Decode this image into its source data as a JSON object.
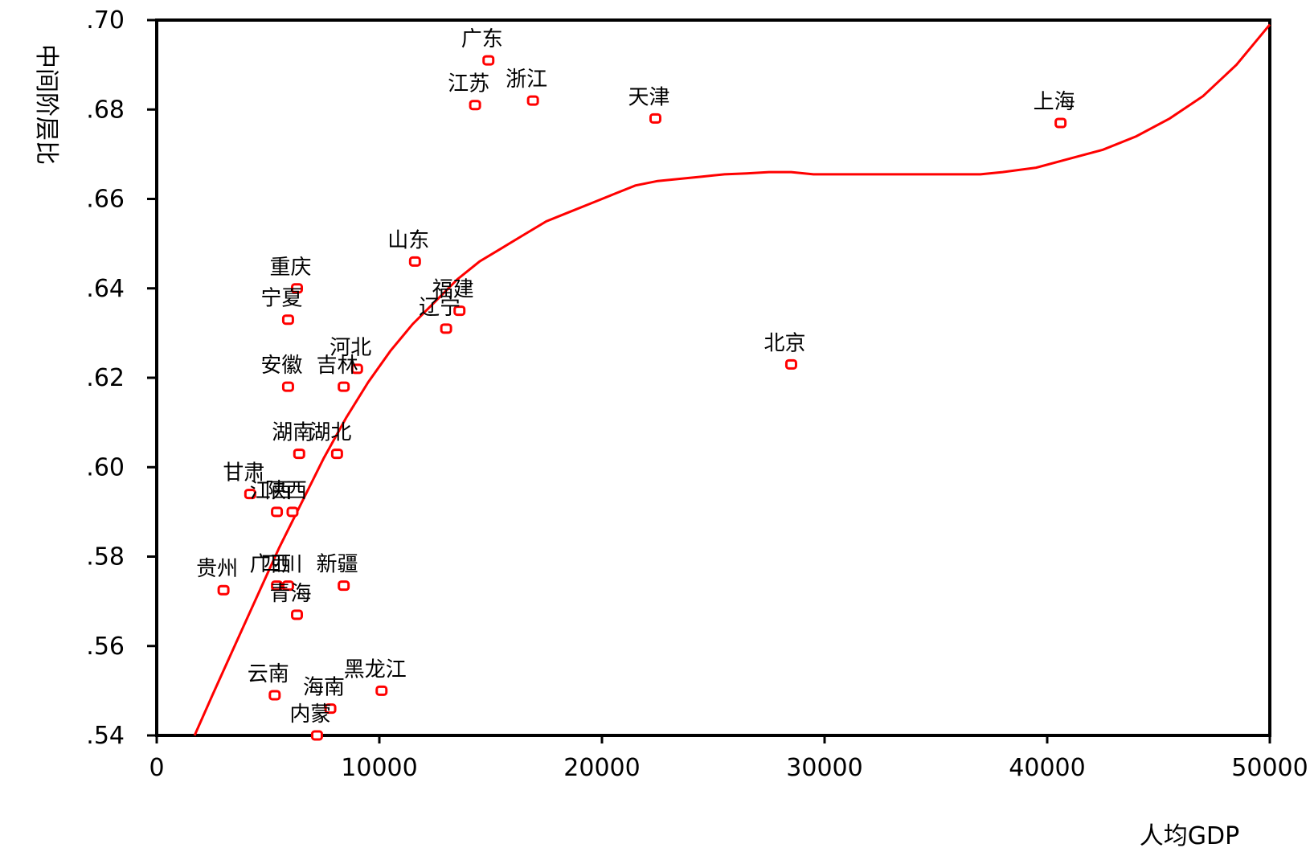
{
  "chart_data": {
    "type": "scatter",
    "xlabel": "人均GDP",
    "ylabel": "中间阶层比",
    "xlim": [
      0,
      50000
    ],
    "ylim": [
      0.54,
      0.7
    ],
    "x_ticks": [
      0,
      10000,
      20000,
      30000,
      40000,
      50000
    ],
    "x_tick_labels": [
      "0",
      "10000",
      "20000",
      "30000",
      "40000",
      "50000"
    ],
    "y_ticks": [
      0.54,
      0.56,
      0.58,
      0.6,
      0.62,
      0.64,
      0.66,
      0.68,
      0.7
    ],
    "y_tick_labels": [
      ".54",
      ".56",
      ".58",
      ".60",
      ".62",
      ".64",
      ".66",
      ".68",
      ".70"
    ],
    "grid": false,
    "marker_color": "#ff0000",
    "curve_color": "#ff0000",
    "points": [
      {
        "label": "广东",
        "x": 14900,
        "y": 0.691
      },
      {
        "label": "江苏",
        "x": 14300,
        "y": 0.681
      },
      {
        "label": "浙江",
        "x": 16900,
        "y": 0.682
      },
      {
        "label": "天津",
        "x": 22400,
        "y": 0.678
      },
      {
        "label": "上海",
        "x": 40600,
        "y": 0.677
      },
      {
        "label": "山东",
        "x": 11600,
        "y": 0.646
      },
      {
        "label": "重庆",
        "x": 6300,
        "y": 0.64
      },
      {
        "label": "宁夏",
        "x": 5900,
        "y": 0.633
      },
      {
        "label": "福建",
        "x": 13600,
        "y": 0.635
      },
      {
        "label": "辽宁",
        "x": 13000,
        "y": 0.631
      },
      {
        "label": "北京",
        "x": 28500,
        "y": 0.623
      },
      {
        "label": "河北",
        "x": 9000,
        "y": 0.622
      },
      {
        "label": "安徽",
        "x": 5900,
        "y": 0.618
      },
      {
        "label": "吉林",
        "x": 8400,
        "y": 0.618
      },
      {
        "label": "湖南",
        "x": 6400,
        "y": 0.603
      },
      {
        "label": "湖北",
        "x": 8100,
        "y": 0.603
      },
      {
        "label": "甘肃",
        "x": 4200,
        "y": 0.594
      },
      {
        "label": "陕西",
        "x": 6100,
        "y": 0.59
      },
      {
        "label": "江西",
        "x": 5400,
        "y": 0.59
      },
      {
        "label": "贵州",
        "x": 3000,
        "y": 0.5725
      },
      {
        "label": "四川",
        "x": 5900,
        "y": 0.5735
      },
      {
        "label": "广西",
        "x": 5400,
        "y": 0.5735
      },
      {
        "label": "新疆",
        "x": 8400,
        "y": 0.5735
      },
      {
        "label": "青海",
        "x": 6300,
        "y": 0.567
      },
      {
        "label": "云南",
        "x": 5300,
        "y": 0.549
      },
      {
        "label": "黑龙江",
        "x": 10100,
        "y": 0.55
      },
      {
        "label": "海南",
        "x": 7800,
        "y": 0.546
      },
      {
        "label": "内蒙",
        "x": 7200,
        "y": 0.54
      }
    ],
    "fit_curve": [
      [
        1700,
        0.54
      ],
      [
        2500,
        0.549
      ],
      [
        3500,
        0.56
      ],
      [
        4500,
        0.571
      ],
      [
        5500,
        0.582
      ],
      [
        6500,
        0.592
      ],
      [
        7500,
        0.602
      ],
      [
        8500,
        0.611
      ],
      [
        9500,
        0.619
      ],
      [
        10500,
        0.626
      ],
      [
        11500,
        0.632
      ],
      [
        12500,
        0.637
      ],
      [
        13500,
        0.642
      ],
      [
        14500,
        0.646
      ],
      [
        15500,
        0.649
      ],
      [
        16500,
        0.652
      ],
      [
        17500,
        0.655
      ],
      [
        18500,
        0.657
      ],
      [
        19500,
        0.659
      ],
      [
        20500,
        0.661
      ],
      [
        21500,
        0.663
      ],
      [
        22500,
        0.664
      ],
      [
        23500,
        0.6645
      ],
      [
        24500,
        0.665
      ],
      [
        25500,
        0.6655
      ],
      [
        26500,
        0.6657
      ],
      [
        27500,
        0.666
      ],
      [
        28500,
        0.666
      ],
      [
        29500,
        0.6655
      ],
      [
        31000,
        0.6655
      ],
      [
        33000,
        0.6655
      ],
      [
        35000,
        0.6655
      ],
      [
        37000,
        0.6655
      ],
      [
        38000,
        0.666
      ],
      [
        39500,
        0.667
      ],
      [
        41000,
        0.669
      ],
      [
        42500,
        0.671
      ],
      [
        44000,
        0.674
      ],
      [
        45500,
        0.678
      ],
      [
        47000,
        0.683
      ],
      [
        48500,
        0.69
      ],
      [
        50000,
        0.699
      ]
    ]
  }
}
